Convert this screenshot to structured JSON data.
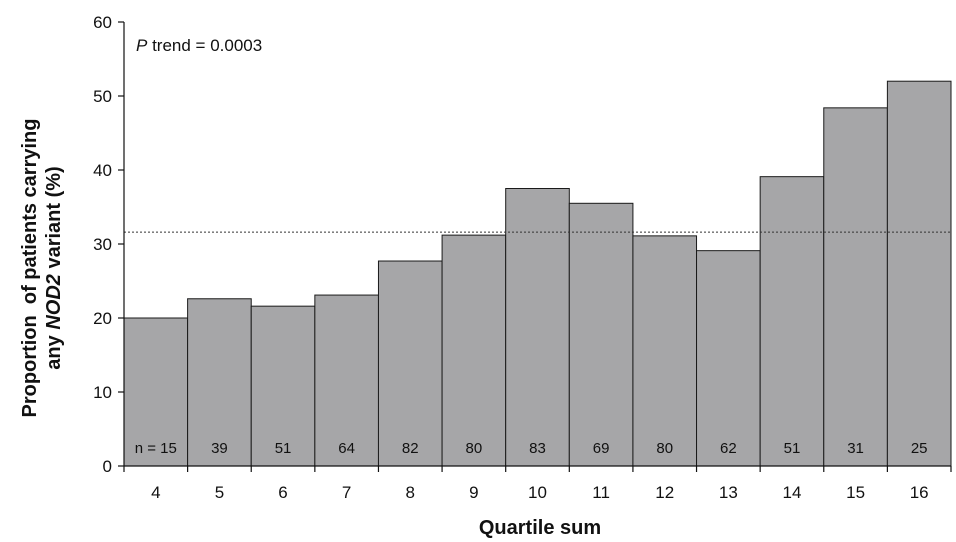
{
  "chart_data": {
    "type": "bar",
    "categories": [
      "4",
      "5",
      "6",
      "7",
      "8",
      "9",
      "10",
      "11",
      "12",
      "13",
      "14",
      "15",
      "16"
    ],
    "values": [
      20.0,
      22.6,
      21.6,
      23.1,
      27.7,
      31.2,
      37.5,
      35.5,
      31.1,
      29.1,
      39.1,
      48.4,
      52.0
    ],
    "n_labels": [
      "n = 15",
      "39",
      "51",
      "64",
      "82",
      "80",
      "83",
      "69",
      "80",
      "62",
      "51",
      "31",
      "25"
    ],
    "reference_line": 31.6,
    "annotation": {
      "italic": "P",
      "text": " trend = 0.0003"
    },
    "xlabel": "Quartile sum",
    "ylabel_line1": "Proportion  of patients carrying",
    "ylabel_line2_pre": "any ",
    "ylabel_line2_italic": "NOD2",
    "ylabel_line2_post": " variant (%)",
    "ylim": [
      0,
      60
    ],
    "yticks": [
      0,
      10,
      20,
      30,
      40,
      50,
      60
    ],
    "grid": false,
    "colors": {
      "bar_fill": "#a6a6a8",
      "bar_stroke": "#1a1a1a",
      "reference_line": "#333333"
    }
  }
}
